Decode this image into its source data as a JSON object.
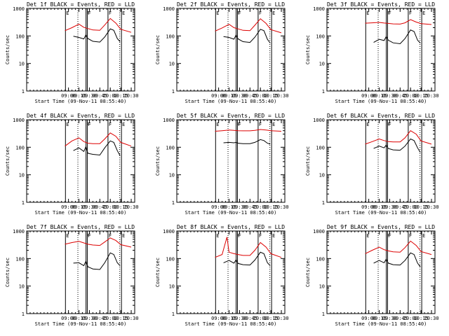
{
  "chart_data": {
    "type": "line",
    "grid": false,
    "y_scale": "log",
    "ylim": [
      1,
      1000
    ],
    "xlim": [
      "08:00",
      "10:35"
    ],
    "x_ticks": [
      "09:00",
      "09:15",
      "09:30",
      "09:45",
      "10:00",
      "10:15",
      "10:30"
    ],
    "y_ticks": [
      "1",
      "10",
      "100",
      "1000"
    ],
    "ylabel": "Counts/sec",
    "xlabel": "Start Time (09-Nov-11 08:55:40)",
    "colors": {
      "events": "#000000",
      "lld": "#dd0000"
    },
    "marker_labels": [
      "F",
      "E"
    ],
    "panels": [
      {
        "title": "Det 1f BLACK = Events, RED = LLD",
        "markers": [
          [
            "E",
            "08:55:40"
          ],
          [
            "F",
            "09:25:10"
          ],
          [
            "F",
            "09:27:00"
          ],
          [
            "F",
            "09:56:40"
          ],
          [
            "E",
            "10:16:00"
          ]
        ],
        "dotted": [
          "09:13:30",
          "10:13:30"
        ],
        "series": [
          {
            "name": "BLACK = Events",
            "x": [
              "09:07",
              "09:15",
              "09:22",
              "09:25",
              "09:28",
              "09:35",
              "09:45",
              "09:52",
              "10:00",
              "10:05",
              "10:10",
              "10:14"
            ],
            "values": [
              98,
              88,
              78,
              110,
              80,
              64,
              60,
              92,
              180,
              160,
              80,
              62
            ]
          },
          {
            "name": "RED = LLD",
            "x": [
              "08:55",
              "09:05",
              "09:15",
              "09:22",
              "09:28",
              "09:35",
              "09:45",
              "09:52",
              "10:00",
              "10:08",
              "10:15",
              "10:30"
            ],
            "values": [
              155,
              200,
              270,
              205,
              185,
              165,
              160,
              250,
              430,
              290,
              175,
              135
            ]
          }
        ]
      },
      {
        "title": "Det 2f BLACK = Events, RED = LLD",
        "markers": [
          [
            "E",
            "08:55:40"
          ],
          [
            "F",
            "09:25:10"
          ],
          [
            "F",
            "09:27:00"
          ],
          [
            "F",
            "09:56:40"
          ],
          [
            "E",
            "10:16:00"
          ]
        ],
        "dotted": [
          "09:13:30",
          "10:13:30"
        ],
        "series": [
          {
            "name": "BLACK = Events",
            "x": [
              "09:07",
              "09:15",
              "09:22",
              "09:25",
              "09:28",
              "09:35",
              "09:45",
              "09:52",
              "10:00",
              "10:05",
              "10:10",
              "10:14"
            ],
            "values": [
              95,
              88,
              76,
              108,
              78,
              62,
              58,
              90,
              175,
              155,
              75,
              55
            ]
          },
          {
            "name": "RED = LLD",
            "x": [
              "08:55",
              "09:05",
              "09:15",
              "09:22",
              "09:28",
              "09:35",
              "09:45",
              "09:52",
              "10:00",
              "10:08",
              "10:15",
              "10:30"
            ],
            "values": [
              150,
              195,
              265,
              200,
              180,
              160,
              155,
              245,
              420,
              285,
              170,
              130
            ]
          }
        ]
      },
      {
        "title": "Det 3f BLACK = Events, RED = LLD",
        "markers": [
          [
            "E",
            "08:55:40"
          ],
          [
            "F",
            "09:25:10"
          ],
          [
            "F",
            "09:27:00"
          ],
          [
            "F",
            "09:56:40"
          ],
          [
            "E",
            "10:16:00"
          ]
        ],
        "dotted": [
          "09:13:30",
          "10:13:30"
        ],
        "series": [
          {
            "name": "BLACK = Events",
            "x": [
              "09:07",
              "09:15",
              "09:22",
              "09:25",
              "09:28",
              "09:35",
              "09:45",
              "09:52",
              "10:00",
              "10:05",
              "10:10",
              "10:14"
            ],
            "values": [
              58,
              75,
              68,
              95,
              70,
              56,
              52,
              80,
              165,
              145,
              70,
              55
            ]
          },
          {
            "name": "RED = LLD",
            "x": [
              "08:55",
              "09:05",
              "09:15",
              "09:22",
              "09:28",
              "09:35",
              "09:45",
              "09:52",
              "10:00",
              "10:08",
              "10:15",
              "10:30"
            ],
            "values": [
              290,
              300,
              310,
              295,
              285,
              275,
              270,
              300,
              390,
              320,
              280,
              260
            ]
          }
        ]
      },
      {
        "title": "Det 4f BLACK = Events, RED = LLD",
        "markers": [
          [
            "E",
            "08:55:40"
          ],
          [
            "F",
            "09:25:10"
          ],
          [
            "F",
            "09:27:00"
          ],
          [
            "F",
            "09:56:40"
          ],
          [
            "E",
            "10:16:00"
          ]
        ],
        "dotted": [
          "09:13:30",
          "10:13:30"
        ],
        "series": [
          {
            "name": "BLACK = Events",
            "x": [
              "09:07",
              "09:15",
              "09:22",
              "09:25",
              "09:28",
              "09:35",
              "09:45",
              "09:52",
              "10:00",
              "10:05",
              "10:10",
              "10:14"
            ],
            "values": [
              75,
              95,
              70,
              105,
              60,
              55,
              52,
              95,
              170,
              150,
              75,
              50
            ]
          },
          {
            "name": "RED = LLD",
            "x": [
              "08:55",
              "09:05",
              "09:15",
              "09:22",
              "09:28",
              "09:35",
              "09:45",
              "09:52",
              "10:00",
              "10:08",
              "10:15",
              "10:30"
            ],
            "values": [
              110,
              170,
              220,
              160,
              140,
              135,
              135,
              200,
              330,
              250,
              150,
              110
            ]
          }
        ]
      },
      {
        "title": "Det 5f BLACK = Events, RED = LLD",
        "markers": [
          [
            "E",
            "08:55:40"
          ],
          [
            "F",
            "09:25:10"
          ],
          [
            "F",
            "09:27:00"
          ],
          [
            "F",
            "09:56:40"
          ],
          [
            "E",
            "10:16:00"
          ]
        ],
        "dotted": [
          "09:13:30",
          "10:13:30"
        ],
        "series": [
          {
            "name": "BLACK = Events",
            "x": [
              "09:07",
              "09:15",
              "09:22",
              "09:25",
              "09:28",
              "09:35",
              "09:45",
              "09:52",
              "10:00",
              "10:05",
              "10:10",
              "10:14"
            ],
            "values": [
              145,
              150,
              145,
              150,
              140,
              135,
              135,
              150,
              190,
              175,
              140,
              130
            ]
          },
          {
            "name": "RED = LLD",
            "x": [
              "08:55",
              "09:05",
              "09:15",
              "09:22",
              "09:28",
              "09:35",
              "09:45",
              "09:52",
              "10:00",
              "10:08",
              "10:15",
              "10:30"
            ],
            "values": [
              380,
              400,
              420,
              410,
              400,
              395,
              395,
              410,
              440,
              420,
              400,
              380
            ]
          }
        ]
      },
      {
        "title": "Det 6f BLACK = Events, RED = LLD",
        "markers": [
          [
            "E",
            "08:55:40"
          ],
          [
            "F",
            "09:25:10"
          ],
          [
            "F",
            "09:27:00"
          ],
          [
            "F",
            "09:56:40"
          ],
          [
            "E",
            "10:16:00"
          ]
        ],
        "dotted": [
          "09:13:30",
          "10:13:30"
        ],
        "series": [
          {
            "name": "BLACK = Events",
            "x": [
              "09:07",
              "09:15",
              "09:22",
              "09:25",
              "09:28",
              "09:35",
              "09:45",
              "09:52",
              "10:00",
              "10:05",
              "10:10",
              "10:14"
            ],
            "values": [
              90,
              110,
              95,
              120,
              90,
              80,
              78,
              110,
              200,
              175,
              95,
              65
            ]
          },
          {
            "name": "RED = LLD",
            "x": [
              "08:55",
              "09:05",
              "09:15",
              "09:22",
              "09:28",
              "09:35",
              "09:45",
              "09:52",
              "10:00",
              "10:08",
              "10:15",
              "10:30"
            ],
            "values": [
              130,
              160,
              200,
              175,
              160,
              155,
              155,
              220,
              400,
              300,
              170,
              130
            ]
          }
        ]
      },
      {
        "title": "Det 7f BLACK = Events, RED = LLD",
        "markers": [
          [
            "E",
            "08:55:40"
          ],
          [
            "F",
            "09:25:10"
          ],
          [
            "F",
            "09:27:00"
          ],
          [
            "F",
            "09:56:40"
          ],
          [
            "E",
            "10:16:00"
          ]
        ],
        "dotted": [
          "09:13:30",
          "10:13:30"
        ],
        "series": [
          {
            "name": "BLACK = Events",
            "x": [
              "09:07",
              "09:15",
              "09:22",
              "09:25",
              "09:28",
              "09:35",
              "09:45",
              "09:52",
              "10:00",
              "10:05",
              "10:10",
              "10:14"
            ],
            "values": [
              68,
              70,
              55,
              80,
              50,
              42,
              40,
              70,
              160,
              140,
              70,
              55
            ]
          },
          {
            "name": "RED = LLD",
            "x": [
              "08:55",
              "09:05",
              "09:15",
              "09:22",
              "09:28",
              "09:35",
              "09:45",
              "09:52",
              "10:00",
              "10:08",
              "10:15",
              "10:30"
            ],
            "values": [
              330,
              380,
              420,
              370,
              330,
              310,
              300,
              400,
              560,
              450,
              320,
              260
            ]
          }
        ]
      },
      {
        "title": "Det 8f BLACK = Events, RED = LLD",
        "markers": [
          [
            "E",
            "08:55:40"
          ],
          [
            "F",
            "09:25:10"
          ],
          [
            "F",
            "09:27:00"
          ],
          [
            "F",
            "09:56:40"
          ],
          [
            "E",
            "10:16:00"
          ]
        ],
        "dotted": [
          "09:13:30",
          "10:13:30"
        ],
        "series": [
          {
            "name": "BLACK = Events",
            "x": [
              "09:07",
              "09:15",
              "09:22",
              "09:25",
              "09:28",
              "09:35",
              "09:45",
              "09:52",
              "10:00",
              "10:05",
              "10:10",
              "10:14"
            ],
            "values": [
              70,
              85,
              68,
              90,
              66,
              60,
              58,
              88,
              170,
              150,
              70,
              55
            ]
          },
          {
            "name": "RED = LLD",
            "x": [
              "08:55",
              "09:05",
              "09:12",
              "09:15",
              "09:22",
              "09:28",
              "09:35",
              "09:45",
              "09:52",
              "10:00",
              "10:08",
              "10:15",
              "10:30"
            ],
            "values": [
              110,
              140,
              600,
              170,
              150,
              140,
              130,
              130,
              200,
              380,
              260,
              150,
              110
            ]
          }
        ]
      },
      {
        "title": "Det 9f BLACK = Events, RED = LLD",
        "markers": [
          [
            "E",
            "08:55:40"
          ],
          [
            "F",
            "09:25:10"
          ],
          [
            "F",
            "09:27:00"
          ],
          [
            "F",
            "09:56:40"
          ],
          [
            "E",
            "10:16:00"
          ]
        ],
        "dotted": [
          "09:13:30",
          "10:13:30"
        ],
        "series": [
          {
            "name": "BLACK = Events",
            "x": [
              "09:07",
              "09:15",
              "09:22",
              "09:25",
              "09:28",
              "09:35",
              "09:45",
              "09:52",
              "10:00",
              "10:05",
              "10:10",
              "10:14"
            ],
            "values": [
              68,
              85,
              70,
              95,
              68,
              60,
              58,
              85,
              160,
              140,
              68,
              50
            ]
          },
          {
            "name": "RED = LLD",
            "x": [
              "08:55",
              "09:05",
              "09:15",
              "09:22",
              "09:28",
              "09:35",
              "09:45",
              "09:52",
              "10:00",
              "10:08",
              "10:15",
              "10:30"
            ],
            "values": [
              150,
              200,
              260,
              210,
              190,
              175,
              170,
              250,
              430,
              300,
              180,
              140
            ]
          }
        ]
      }
    ]
  }
}
